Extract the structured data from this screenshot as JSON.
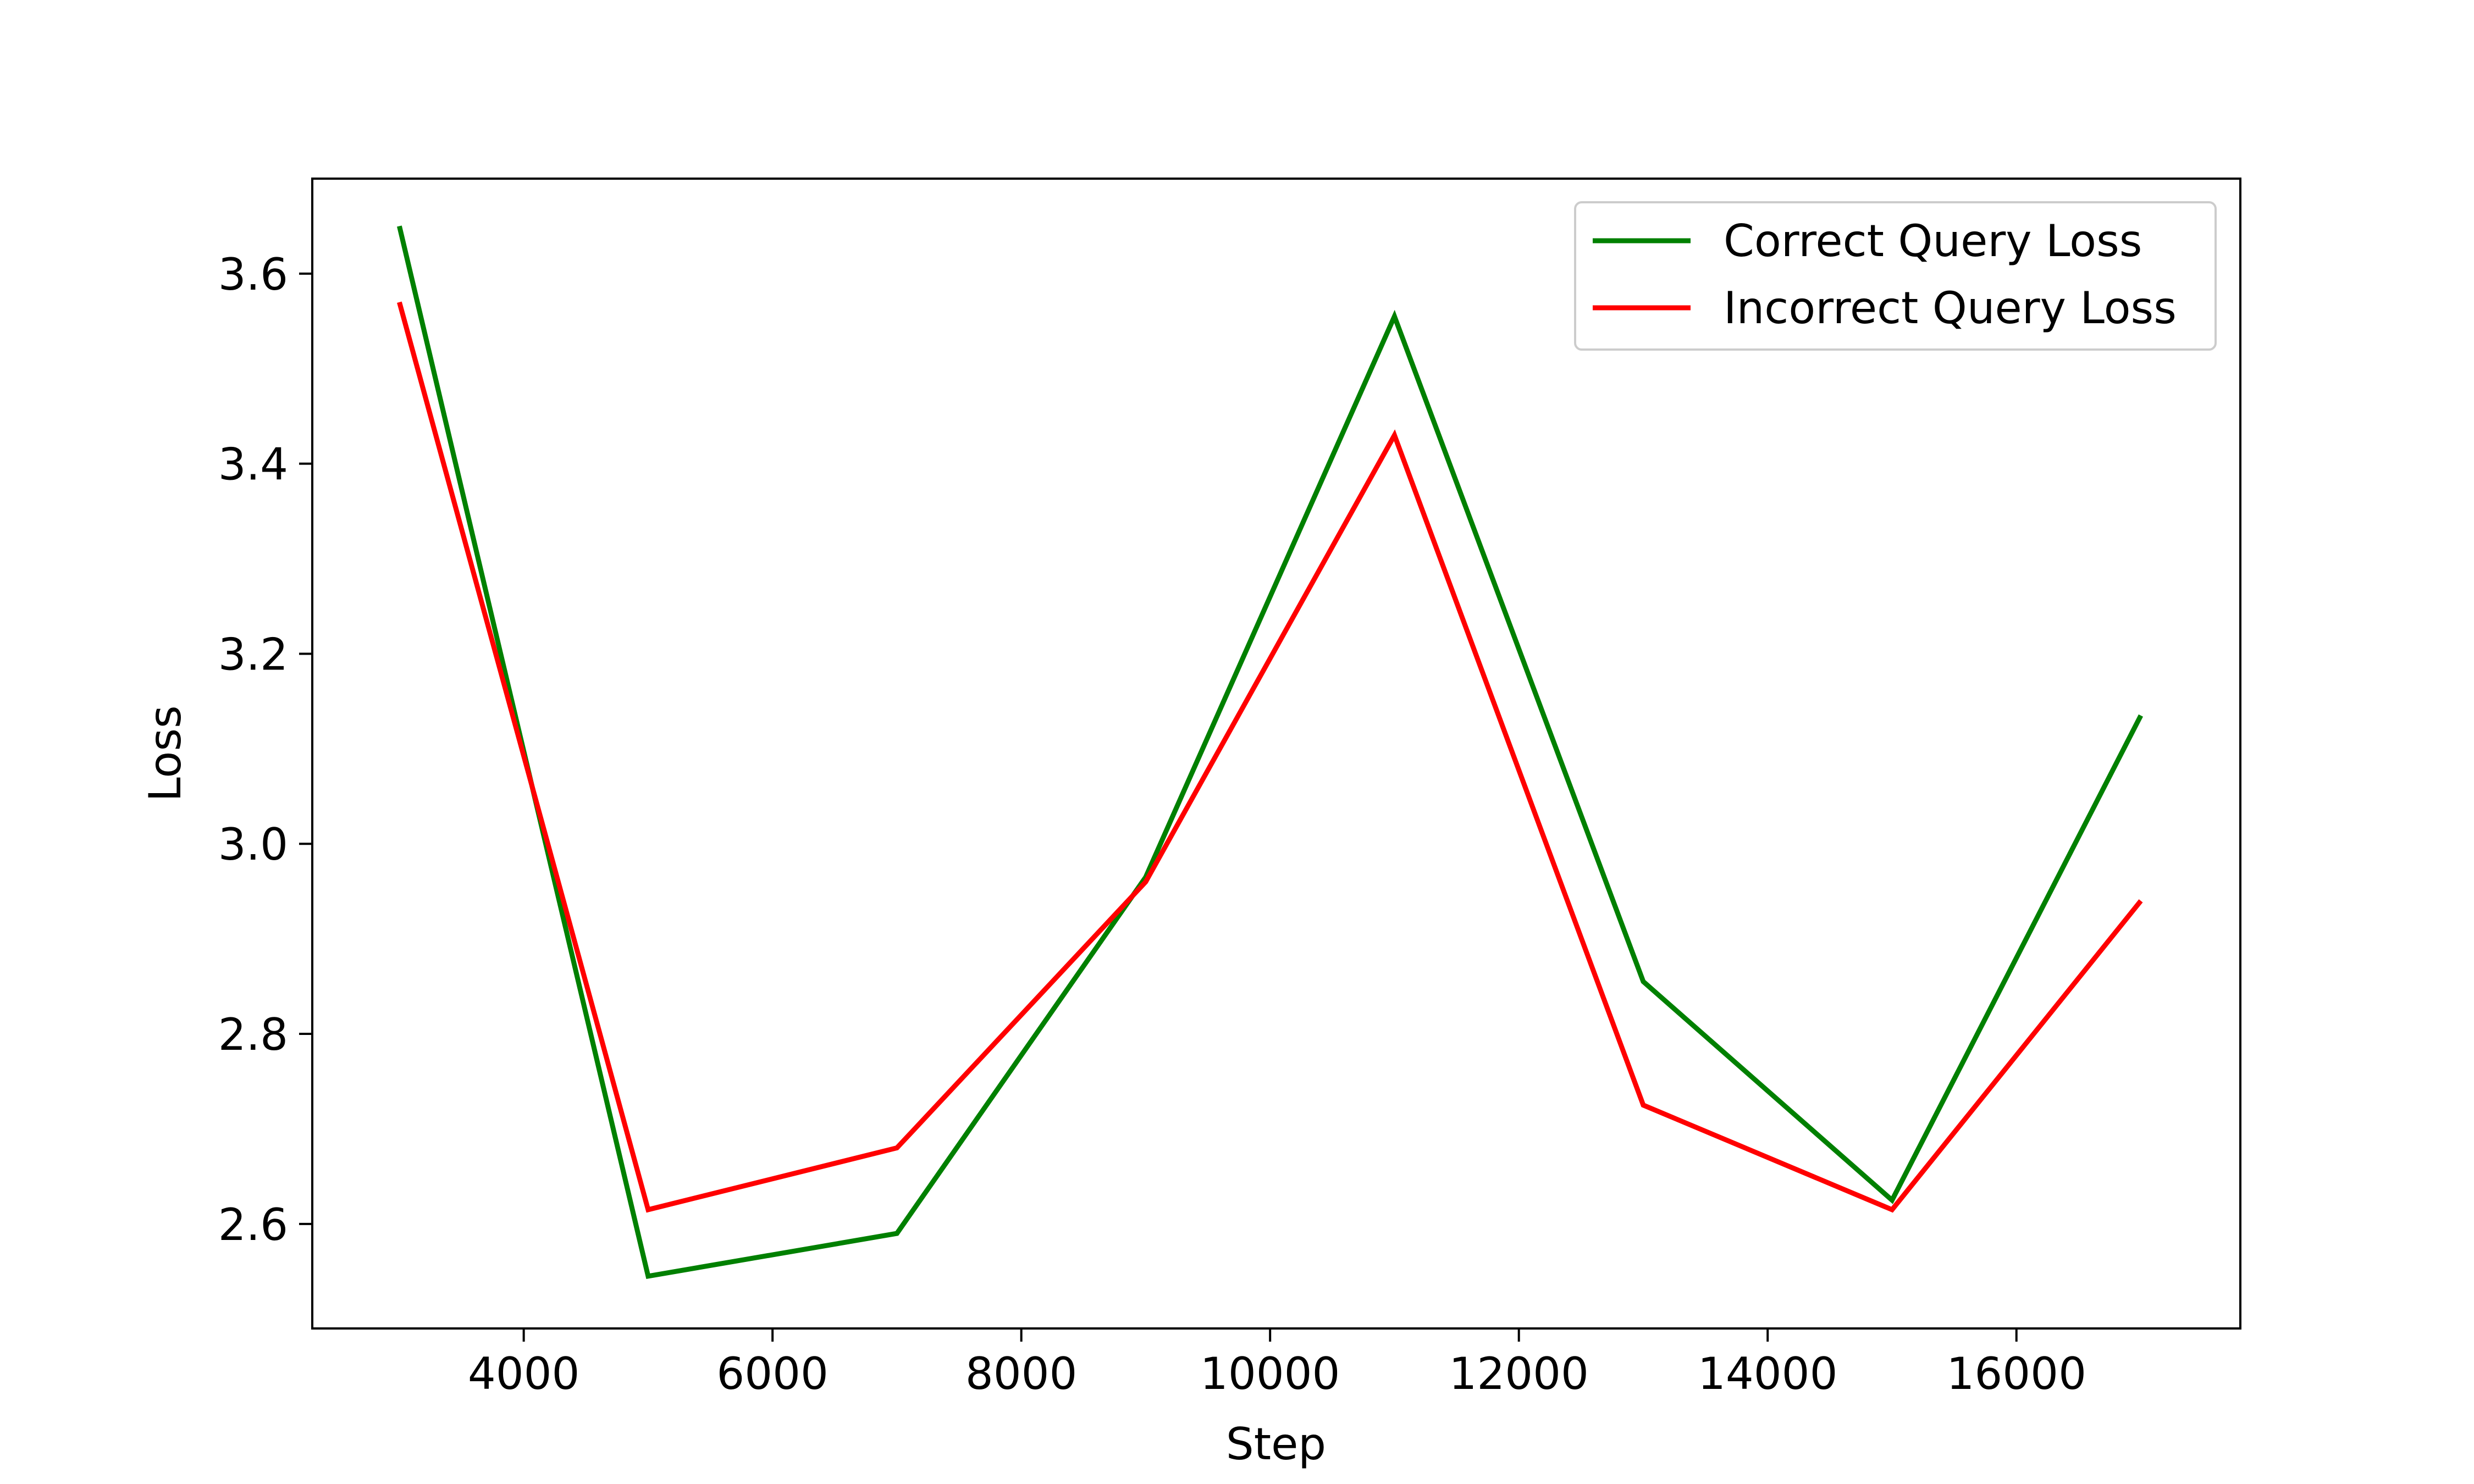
{
  "chart_data": {
    "type": "line",
    "title": "",
    "xlabel": "Step",
    "ylabel": "Loss",
    "x": [
      3000,
      5000,
      7000,
      9000,
      11000,
      13000,
      15000,
      17000
    ],
    "series": [
      {
        "name": "Correct Query Loss",
        "color": "#008000",
        "values": [
          3.65,
          2.545,
          2.59,
          2.965,
          3.555,
          2.855,
          2.625,
          3.135
        ]
      },
      {
        "name": "Incorrect Query Loss",
        "color": "#ff0000",
        "values": [
          3.57,
          2.615,
          2.68,
          2.96,
          3.43,
          2.725,
          2.615,
          2.94
        ]
      }
    ],
    "xlim": [
      2300,
      17800
    ],
    "ylim": [
      2.49,
      3.7
    ],
    "xticks": [
      4000,
      6000,
      8000,
      10000,
      12000,
      14000,
      16000
    ],
    "xtick_labels": [
      "4000",
      "6000",
      "8000",
      "10000",
      "12000",
      "14000",
      "16000"
    ],
    "yticks": [
      2.6,
      2.8,
      3.0,
      3.2,
      3.4,
      3.6
    ],
    "ytick_labels": [
      "2.6",
      "2.8",
      "3.0",
      "3.2",
      "3.4",
      "3.6"
    ],
    "grid": false,
    "legend_position": "top-right"
  }
}
